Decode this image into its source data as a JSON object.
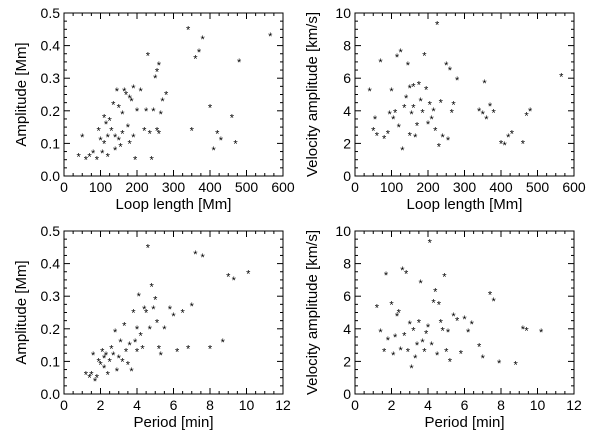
{
  "chart_data": [
    {
      "type": "scatter",
      "xlabel": "Loop length [Mm]",
      "ylabel": "Amplitude [Mm]",
      "xlim": [
        0,
        600
      ],
      "ylim": [
        0,
        0.5
      ],
      "xticks": [
        "0",
        "100",
        "200",
        "300",
        "400",
        "500",
        "600"
      ],
      "yticks": [
        "0.0",
        "0.1",
        "0.2",
        "0.3",
        "0.4",
        "0.5"
      ],
      "marker": "*",
      "x": [
        40,
        50,
        60,
        70,
        80,
        90,
        95,
        100,
        105,
        110,
        110,
        115,
        120,
        120,
        125,
        130,
        135,
        140,
        140,
        145,
        150,
        150,
        155,
        160,
        160,
        165,
        170,
        175,
        180,
        180,
        185,
        190,
        190,
        195,
        200,
        210,
        220,
        225,
        230,
        235,
        240,
        245,
        250,
        255,
        255,
        260,
        260,
        265,
        270,
        280,
        340,
        350,
        360,
        370,
        380,
        400,
        410,
        420,
        430,
        460,
        470,
        480,
        565
      ],
      "y": [
        0.06,
        0.12,
        0.05,
        0.06,
        0.07,
        0.05,
        0.14,
        0.11,
        0.07,
        0.1,
        0.18,
        0.16,
        0.12,
        0.06,
        0.17,
        0.14,
        0.22,
        0.08,
        0.12,
        0.26,
        0.21,
        0.11,
        0.09,
        0.19,
        0.13,
        0.26,
        0.25,
        0.15,
        0.24,
        0.1,
        0.23,
        0.12,
        0.27,
        0.05,
        0.2,
        0.26,
        0.14,
        0.2,
        0.37,
        0.13,
        0.05,
        0.2,
        0.3,
        0.14,
        0.32,
        0.13,
        0.34,
        0.19,
        0.23,
        0.25,
        0.45,
        0.14,
        0.36,
        0.38,
        0.42,
        0.21,
        0.08,
        0.13,
        0.11,
        0.18,
        0.1,
        0.35,
        0.43
      ]
    },
    {
      "type": "scatter",
      "xlabel": "Loop length [Mm]",
      "ylabel": "Velocity amplitude [km/s]",
      "xlim": [
        0,
        600
      ],
      "ylim": [
        0,
        10
      ],
      "xticks": [
        "0",
        "100",
        "200",
        "300",
        "400",
        "500",
        "600"
      ],
      "yticks": [
        "0",
        "2",
        "4",
        "6",
        "8",
        "10"
      ],
      "marker": "*",
      "x": [
        40,
        50,
        55,
        60,
        70,
        80,
        90,
        95,
        100,
        105,
        110,
        115,
        120,
        125,
        130,
        135,
        140,
        145,
        150,
        150,
        155,
        160,
        160,
        165,
        170,
        175,
        180,
        185,
        190,
        195,
        200,
        205,
        210,
        215,
        220,
        225,
        230,
        235,
        240,
        250,
        255,
        260,
        265,
        270,
        280,
        340,
        350,
        355,
        360,
        370,
        380,
        400,
        410,
        420,
        430,
        460,
        470,
        480,
        565
      ],
      "y": [
        5.2,
        2.8,
        3.5,
        2.5,
        7.0,
        2.3,
        2.6,
        3.8,
        5.2,
        3.5,
        3.9,
        7.3,
        3.0,
        7.6,
        1.6,
        4.2,
        4.8,
        6.8,
        2.5,
        5.4,
        3.8,
        5.5,
        4.2,
        2.4,
        3.1,
        5.6,
        4.6,
        3.9,
        7.4,
        5.3,
        3.2,
        4.4,
        3.5,
        4.0,
        2.8,
        9.3,
        1.8,
        4.5,
        2.4,
        6.8,
        2.2,
        6.5,
        3.9,
        4.4,
        5.9,
        4.0,
        3.8,
        5.7,
        3.5,
        4.3,
        3.9,
        2.0,
        1.9,
        2.4,
        2.6,
        2.0,
        3.7,
        4.0,
        6.1
      ]
    },
    {
      "type": "scatter",
      "xlabel": "Period [min]",
      "ylabel": "Amplitude [Mm]",
      "xlim": [
        0,
        12
      ],
      "ylim": [
        0,
        0.5
      ],
      "xticks": [
        "0",
        "2",
        "4",
        "6",
        "8",
        "10",
        "12"
      ],
      "yticks": [
        "0.0",
        "0.1",
        "0.2",
        "0.3",
        "0.4",
        "0.5"
      ],
      "marker": "*",
      "x": [
        1.2,
        1.4,
        1.5,
        1.6,
        1.7,
        1.8,
        1.9,
        2.0,
        2.1,
        2.2,
        2.2,
        2.3,
        2.4,
        2.5,
        2.6,
        2.7,
        2.8,
        2.9,
        3.0,
        3.1,
        3.2,
        3.3,
        3.4,
        3.5,
        3.6,
        3.7,
        3.8,
        3.9,
        4.0,
        4.0,
        4.1,
        4.2,
        4.3,
        4.4,
        4.5,
        4.6,
        4.7,
        4.8,
        4.9,
        5.0,
        5.1,
        5.2,
        5.3,
        5.5,
        5.8,
        6.0,
        6.2,
        6.5,
        6.8,
        7.0,
        7.2,
        7.6,
        8.0,
        8.7,
        9.0,
        9.3,
        10.1
      ],
      "y": [
        0.06,
        0.05,
        0.06,
        0.12,
        0.04,
        0.05,
        0.1,
        0.09,
        0.13,
        0.11,
        0.08,
        0.12,
        0.06,
        0.1,
        0.14,
        0.12,
        0.19,
        0.07,
        0.11,
        0.16,
        0.1,
        0.21,
        0.13,
        0.09,
        0.15,
        0.07,
        0.25,
        0.16,
        0.13,
        0.2,
        0.3,
        0.18,
        0.14,
        0.26,
        0.25,
        0.45,
        0.2,
        0.33,
        0.26,
        0.29,
        0.22,
        0.14,
        0.12,
        0.2,
        0.26,
        0.24,
        0.13,
        0.25,
        0.14,
        0.27,
        0.43,
        0.42,
        0.14,
        0.16,
        0.36,
        0.35,
        0.37
      ]
    },
    {
      "type": "scatter",
      "xlabel": "Period [min]",
      "ylabel": "Velocity amplitude [km/s]",
      "xlim": [
        0,
        12
      ],
      "ylim": [
        0,
        10
      ],
      "xticks": [
        "0",
        "2",
        "4",
        "6",
        "8",
        "10",
        "12"
      ],
      "yticks": [
        "0",
        "2",
        "4",
        "6",
        "8",
        "10"
      ],
      "marker": "*",
      "x": [
        1.2,
        1.4,
        1.6,
        1.7,
        1.8,
        2.0,
        2.1,
        2.2,
        2.3,
        2.4,
        2.5,
        2.6,
        2.7,
        2.8,
        2.9,
        3.0,
        3.1,
        3.2,
        3.3,
        3.4,
        3.5,
        3.6,
        3.7,
        3.8,
        3.9,
        4.0,
        4.1,
        4.2,
        4.3,
        4.4,
        4.5,
        4.6,
        4.7,
        4.8,
        4.9,
        5.0,
        5.1,
        5.2,
        5.4,
        5.6,
        5.8,
        6.0,
        6.2,
        6.4,
        6.8,
        7.0,
        7.4,
        7.6,
        7.9,
        8.8,
        9.2,
        9.4,
        10.2
      ],
      "y": [
        5.3,
        3.8,
        2.6,
        7.3,
        3.3,
        5.5,
        2.4,
        3.5,
        4.8,
        5.0,
        2.7,
        7.6,
        3.6,
        7.4,
        2.6,
        4.3,
        1.6,
        3.9,
        2.2,
        3.0,
        4.4,
        6.8,
        3.2,
        2.6,
        3.7,
        4.1,
        9.3,
        3.0,
        5.6,
        6.3,
        2.4,
        5.5,
        4.4,
        3.9,
        7.2,
        2.6,
        3.8,
        2.0,
        4.8,
        4.5,
        2.5,
        4.6,
        3.8,
        4.3,
        2.9,
        2.2,
        6.1,
        5.7,
        1.9,
        1.8,
        4.0,
        3.9,
        3.8
      ]
    }
  ]
}
